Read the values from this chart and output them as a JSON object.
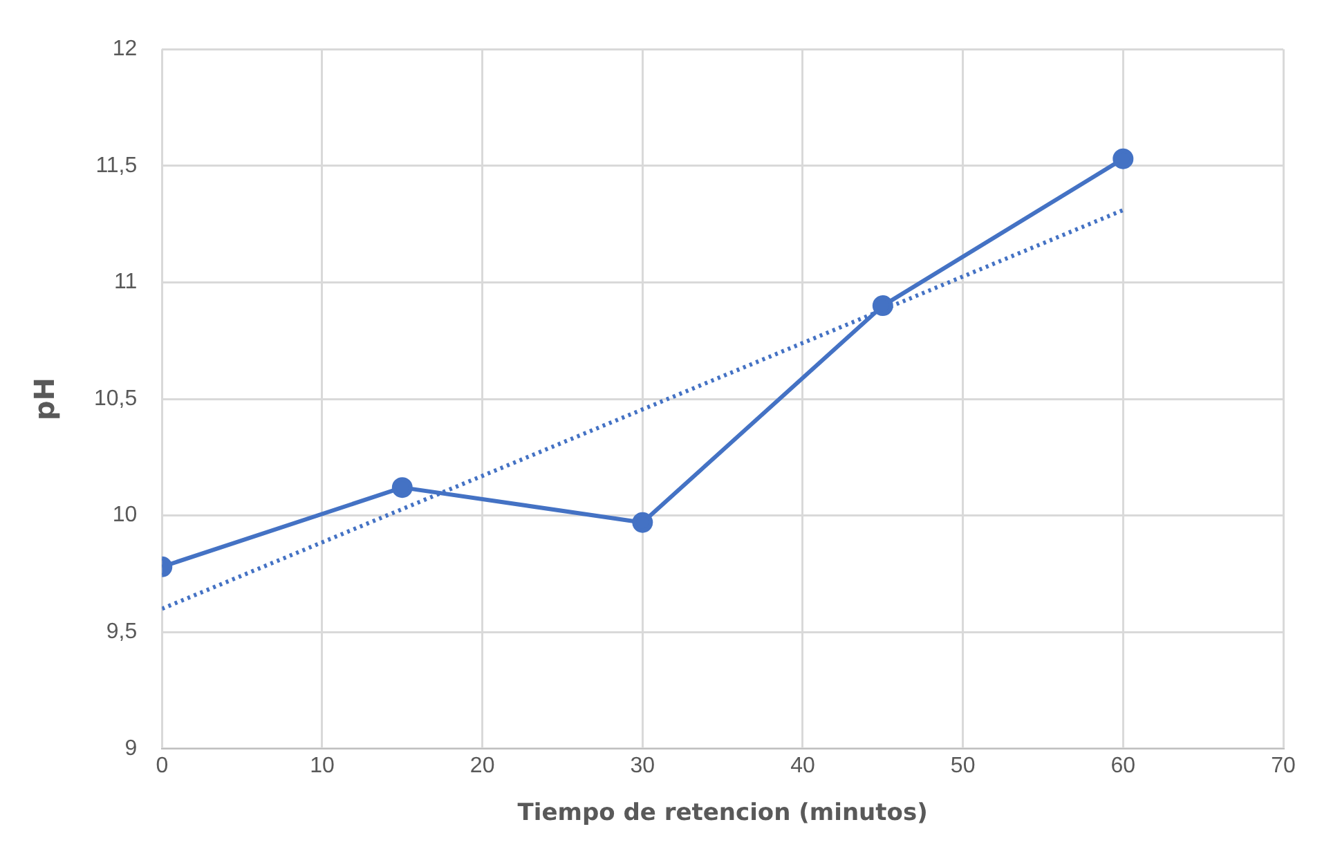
{
  "chart_data": {
    "type": "line",
    "xlabel": "Tiempo de retencion (minutos)",
    "ylabel": "pH",
    "x": [
      0,
      15,
      30,
      45,
      60
    ],
    "series": [
      {
        "color": "#4472c4",
        "values": [
          9.78,
          10.12,
          9.97,
          10.9,
          11.53
        ],
        "marker": "circle",
        "line_style": "solid"
      },
      {
        "x": [
          0,
          60
        ],
        "color": "#4472c4",
        "values": [
          9.6,
          11.31
        ],
        "marker": "none",
        "line_style": "dotted"
      }
    ],
    "xlim": [
      0,
      70
    ],
    "xticks": [
      0,
      10,
      20,
      30,
      40,
      50,
      60,
      70
    ],
    "ylim": [
      9,
      12
    ],
    "yticks": [
      9,
      {
        "value": 9.5,
        "label": "9,5"
      },
      10,
      {
        "value": 10.5,
        "label": "10,5"
      },
      11,
      {
        "value": 11.5,
        "label": "11,5"
      },
      12
    ],
    "grid": true,
    "legend": false
  }
}
